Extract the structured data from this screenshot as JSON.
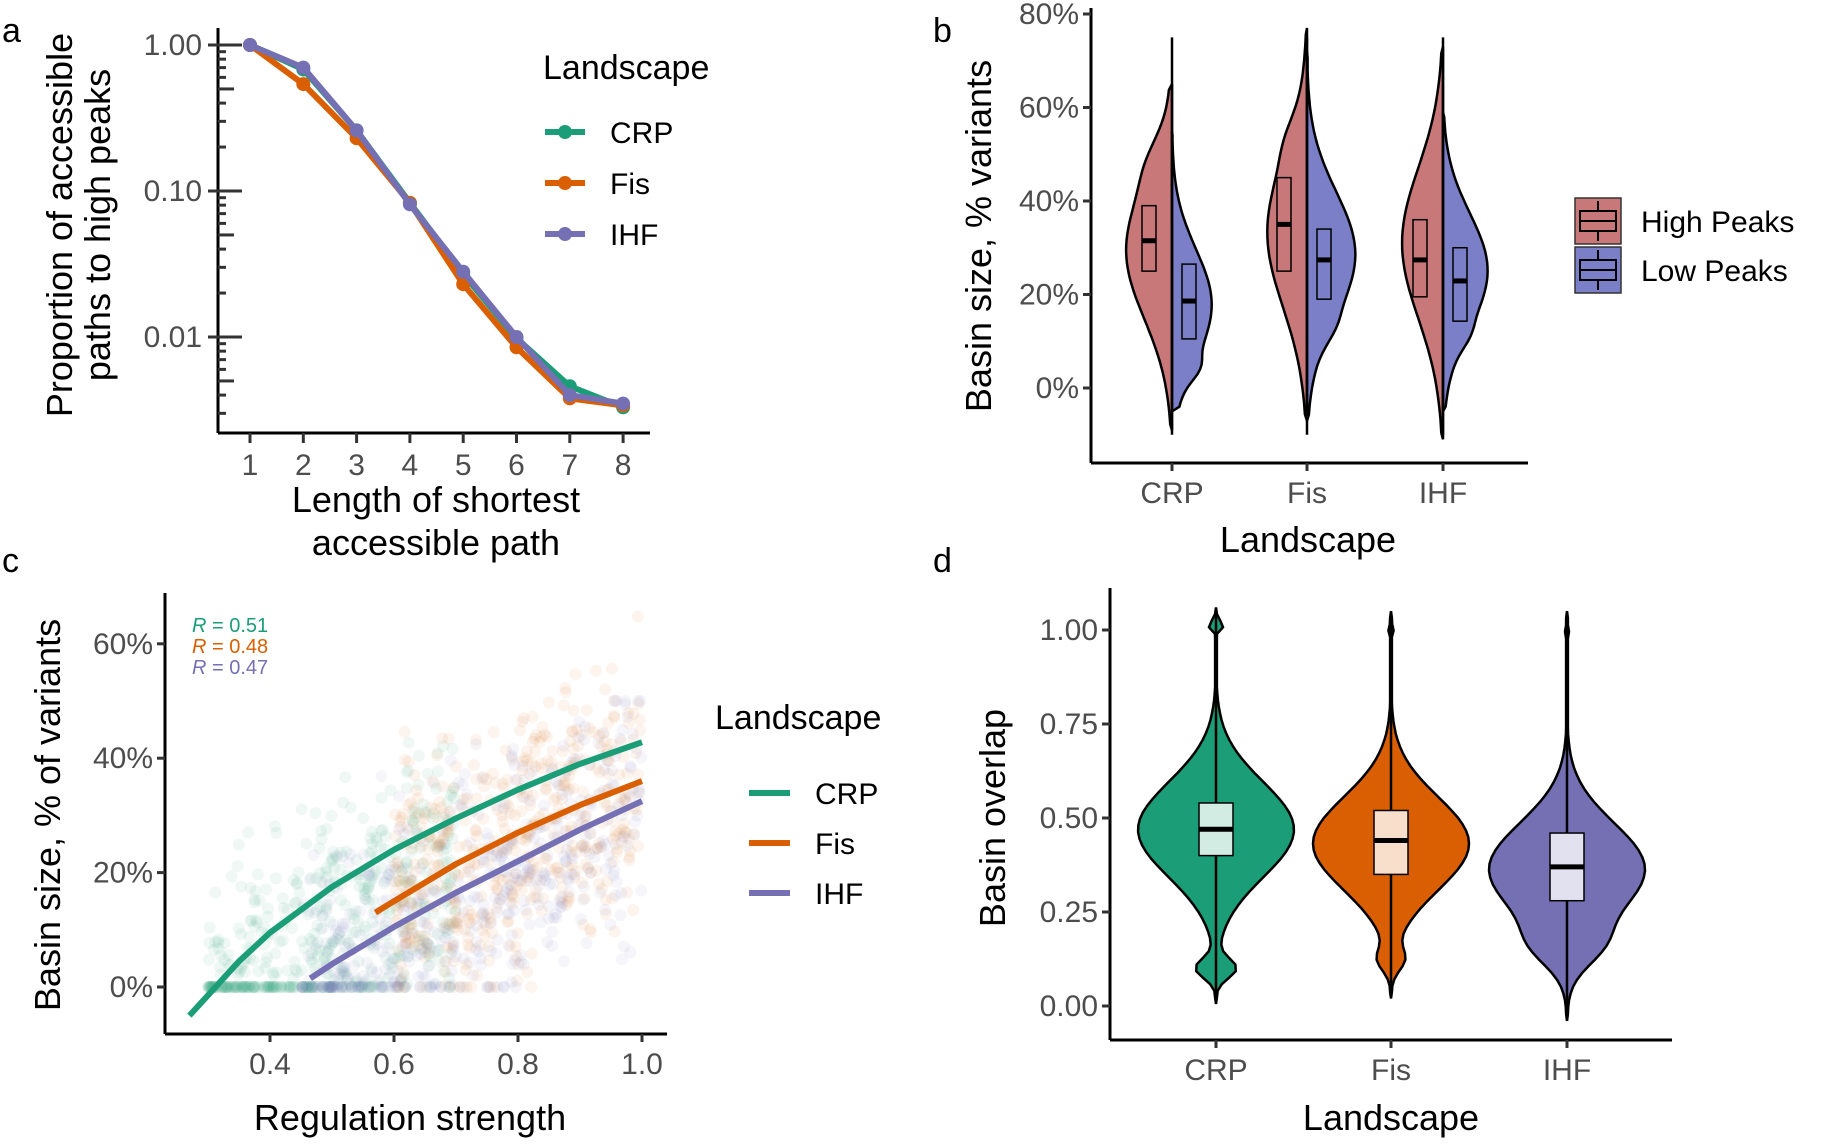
{
  "chart_data": [
    {
      "panel": "a",
      "type": "line",
      "title": "",
      "xlabel": "Length of shortest accessible path",
      "xlabel_lines": [
        "Length of shortest",
        "accessible path"
      ],
      "ylabel": "Proportion of accessible paths to high peaks",
      "ylabel_lines": [
        "Proportion of accessible",
        "paths to high peaks"
      ],
      "yscale": "log10",
      "ylim": [
        0.0028,
        1.0
      ],
      "xlim": [
        0.6,
        8.5
      ],
      "x": [
        1,
        2,
        3,
        4,
        5,
        6,
        7,
        8
      ],
      "xticks": [
        "1",
        "2",
        "3",
        "4",
        "5",
        "6",
        "7",
        "8"
      ],
      "yticks": [
        {
          "value": 1.0,
          "label": "1.00"
        },
        {
          "value": 0.1,
          "label": "0.10"
        },
        {
          "value": 0.01,
          "label": "0.01"
        }
      ],
      "legend_title": "Landscape",
      "legend_position": "top-right",
      "series": [
        {
          "name": "CRP",
          "color": "#1b9e77",
          "values": [
            1.0,
            0.68,
            0.26,
            0.083,
            0.027,
            0.0098,
            0.0046,
            0.0033
          ]
        },
        {
          "name": "Fis",
          "color": "#d95f02",
          "values": [
            1.0,
            0.54,
            0.23,
            0.083,
            0.023,
            0.0085,
            0.0038,
            0.0034
          ]
        },
        {
          "name": "IHF",
          "color": "#7570b3",
          "values": [
            1.0,
            0.7,
            0.26,
            0.081,
            0.028,
            0.01,
            0.004,
            0.0035
          ]
        }
      ]
    },
    {
      "panel": "b",
      "type": "violin",
      "xlabel": "Landscape",
      "ylabel": "Basin size, % variants",
      "ylim": [
        -0.18,
        0.82
      ],
      "yticks": [
        {
          "value": 0.0,
          "label": "0%"
        },
        {
          "value": 0.2,
          "label": "20%"
        },
        {
          "value": 0.4,
          "label": "40%"
        },
        {
          "value": 0.6,
          "label": "60%"
        },
        {
          "value": 0.8,
          "label": "80%"
        }
      ],
      "categories": [
        "CRP",
        "Fis",
        "IHF"
      ],
      "legend_position": "right",
      "series": [
        {
          "name": "High Peaks",
          "color": "#c87878",
          "side": "left",
          "box": [
            {
              "q1": 0.25,
              "median": 0.315,
              "q3": 0.39
            },
            {
              "q1": 0.25,
              "median": 0.35,
              "q3": 0.45
            },
            {
              "q1": 0.195,
              "median": 0.274,
              "q3": 0.36
            }
          ],
          "range": [
            [
              -0.09,
              0.65
            ],
            [
              -0.07,
              0.77
            ],
            [
              -0.11,
              0.73
            ]
          ],
          "max_width": [
            0.74,
            0.64,
            0.66
          ]
        },
        {
          "name": "Low Peaks",
          "color": "#7b7fc8",
          "side": "right",
          "box": [
            {
              "q1": 0.105,
              "median": 0.186,
              "q3": 0.265
            },
            {
              "q1": 0.19,
              "median": 0.274,
              "q3": 0.34
            },
            {
              "q1": 0.143,
              "median": 0.229,
              "q3": 0.3
            }
          ],
          "range": [
            [
              -0.05,
              0.55
            ],
            [
              -0.07,
              0.72
            ],
            [
              -0.05,
              0.59
            ]
          ],
          "max_width": [
            0.64,
            0.78,
            0.72
          ]
        }
      ]
    },
    {
      "panel": "c",
      "type": "scatter",
      "xlabel": "Regulation strength",
      "ylabel": "Basin size, % of variants",
      "xlim": [
        0.23,
        1.04
      ],
      "ylim": [
        -0.08,
        0.7
      ],
      "xticks": [
        {
          "value": 0.4,
          "label": "0.4"
        },
        {
          "value": 0.6,
          "label": "0.6"
        },
        {
          "value": 0.8,
          "label": "0.8"
        },
        {
          "value": 1.0,
          "label": "1.0"
        }
      ],
      "yticks": [
        {
          "value": 0.0,
          "label": "0%"
        },
        {
          "value": 0.2,
          "label": "20%"
        },
        {
          "value": 0.4,
          "label": "40%"
        },
        {
          "value": 0.6,
          "label": "60%"
        }
      ],
      "legend_title": "Landscape",
      "legend_position": "right",
      "annotations": [
        {
          "text_prefix": "R",
          "text": " = 0.51",
          "series": "CRP"
        },
        {
          "text_prefix": "R",
          "text": " = 0.48",
          "series": "Fis"
        },
        {
          "text_prefix": "R",
          "text": " = 0.47",
          "series": "IHF"
        }
      ],
      "series": [
        {
          "name": "CRP",
          "color": "#1b9e77",
          "fit_x": [
            0.27,
            0.35,
            0.4,
            0.5,
            0.6,
            0.7,
            0.8,
            0.9,
            1.0
          ],
          "fit_y": [
            -0.05,
            0.045,
            0.095,
            0.175,
            0.24,
            0.295,
            0.345,
            0.39,
            0.428
          ],
          "point_cloud": {
            "x_range": [
              0.3,
              0.7
            ],
            "y_range": [
              0.0,
              0.5
            ]
          }
        },
        {
          "name": "Fis",
          "color": "#d95f02",
          "fit_x": [
            0.57,
            0.6,
            0.7,
            0.8,
            0.9,
            1.0
          ],
          "fit_y": [
            0.13,
            0.15,
            0.215,
            0.27,
            0.318,
            0.36
          ],
          "point_cloud": {
            "x_range": [
              0.6,
              1.0
            ],
            "y_range": [
              0.0,
              0.65
            ]
          }
        },
        {
          "name": "IHF",
          "color": "#7570b3",
          "fit_x": [
            0.465,
            0.5,
            0.6,
            0.7,
            0.8,
            0.9,
            1.0
          ],
          "fit_y": [
            0.015,
            0.04,
            0.105,
            0.165,
            0.22,
            0.275,
            0.325
          ],
          "point_cloud": {
            "x_range": [
              0.45,
              1.0
            ],
            "y_range": [
              0.0,
              0.5
            ]
          }
        }
      ]
    },
    {
      "panel": "d",
      "type": "violin",
      "xlabel": "Landscape",
      "ylabel": "Basin overlap",
      "ylim": [
        -0.09,
        1.09
      ],
      "yticks": [
        {
          "value": 0.0,
          "label": "0.00"
        },
        {
          "value": 0.25,
          "label": "0.25"
        },
        {
          "value": 0.5,
          "label": "0.50"
        },
        {
          "value": 0.75,
          "label": "0.75"
        },
        {
          "value": 1.0,
          "label": "1.00"
        }
      ],
      "categories": [
        "CRP",
        "Fis",
        "IHF"
      ],
      "series": [
        {
          "name": "CRP",
          "color": "#1b9e77",
          "box_fill": "#d2ece4",
          "box": {
            "q1": 0.4,
            "median": 0.47,
            "q3": 0.54
          },
          "range": [
            0.005,
            1.06
          ]
        },
        {
          "name": "Fis",
          "color": "#d95f02",
          "box_fill": "#f8dfcc",
          "box": {
            "q1": 0.35,
            "median": 0.44,
            "q3": 0.52
          },
          "range": [
            0.02,
            1.05
          ]
        },
        {
          "name": "IHF",
          "color": "#7570b3",
          "box_fill": "#e2e1ef",
          "box": {
            "q1": 0.28,
            "median": 0.37,
            "q3": 0.46
          },
          "range": [
            -0.04,
            1.05
          ]
        }
      ]
    }
  ],
  "panel_labels": {
    "a": "a",
    "b": "b",
    "c": "c",
    "d": "d"
  }
}
